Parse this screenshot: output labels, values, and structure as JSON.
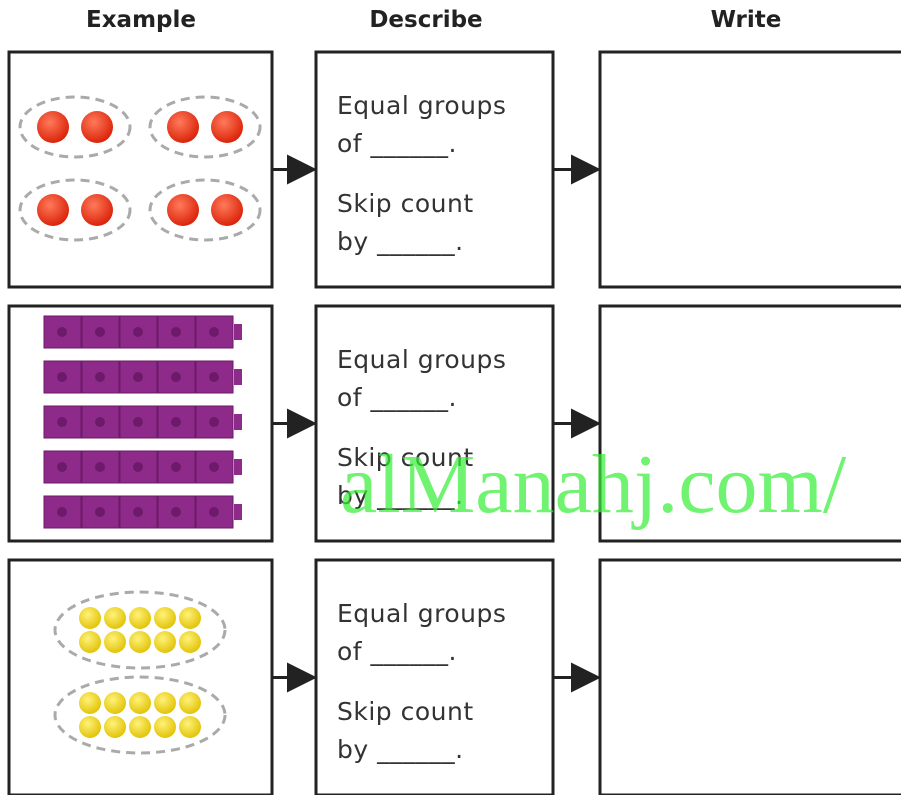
{
  "headers": [
    "Example",
    "Describe",
    "Write"
  ],
  "rows": [
    {
      "describe": [
        "Equal groups",
        "of ______.",
        "Skip count",
        "by ______."
      ]
    },
    {
      "describe": [
        "Equal groups",
        "of ______.",
        "Skip count",
        "by ______."
      ]
    },
    {
      "describe": [
        "Equal groups",
        "of ______.",
        "Skip count",
        "by ______."
      ]
    }
  ],
  "watermark": "alManahj.com/"
}
